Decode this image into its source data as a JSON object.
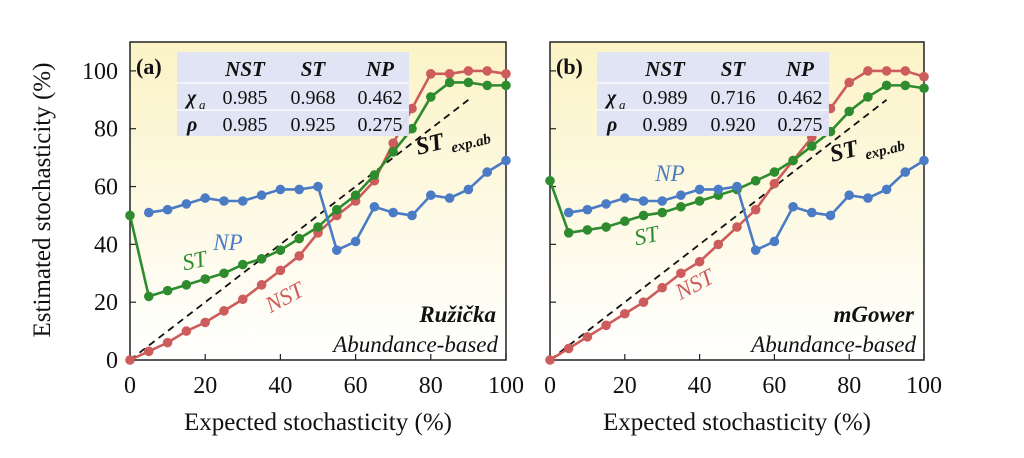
{
  "figure": {
    "ylabel": "Estimated stochasticity (%)"
  },
  "chart_data": [
    {
      "type": "line",
      "panel_label": "(a)",
      "xlabel": "Expected stochasticity (%)",
      "ylabel": "Estimated stochasticity (%)",
      "xlim": [
        0,
        100
      ],
      "ylim": [
        0,
        110
      ],
      "xticks": [
        "0",
        "20",
        "40",
        "60",
        "80",
        "100"
      ],
      "yticks": [
        "0",
        "20",
        "40",
        "60",
        "80",
        "100"
      ],
      "metric_name": "Ružička",
      "metric_type": "Abundance-based",
      "reference_label_main": "ST",
      "reference_label_sub": "exp.ab",
      "reference_line": {
        "x": [
          0,
          90
        ],
        "y": [
          0,
          90
        ],
        "style": "dashed",
        "color": "#111111"
      },
      "stats_table": {
        "header": [
          "NST",
          "ST",
          "NP"
        ],
        "rows": [
          {
            "label": "χ",
            "sub": "a",
            "values": [
              "0.985",
              "0.968",
              "0.462"
            ]
          },
          {
            "label": "ρ",
            "sub": "",
            "values": [
              "0.985",
              "0.925",
              "0.275"
            ]
          }
        ]
      },
      "series": [
        {
          "name": "NST",
          "color": "#cd5c5c",
          "x": [
            0,
            5,
            10,
            15,
            20,
            25,
            30,
            35,
            40,
            45,
            50,
            55,
            60,
            65,
            70,
            75,
            80,
            85,
            90,
            95,
            100
          ],
          "y": [
            0,
            3,
            6,
            10,
            13,
            17,
            21,
            26,
            31,
            36,
            44,
            50,
            55,
            62,
            75,
            87,
            99,
            99,
            100,
            100,
            99
          ]
        },
        {
          "name": "ST",
          "color": "#2e8b2e",
          "x": [
            0,
            5,
            10,
            15,
            20,
            25,
            30,
            35,
            40,
            45,
            50,
            55,
            60,
            65,
            70,
            75,
            80,
            85,
            90,
            95,
            100
          ],
          "y": [
            50,
            22,
            24,
            26,
            28,
            30,
            33,
            35,
            38,
            42,
            46,
            52,
            57,
            64,
            72,
            80,
            91,
            96,
            96,
            95,
            95
          ]
        },
        {
          "name": "NP",
          "color": "#4a7bc4",
          "x": [
            5,
            10,
            15,
            20,
            25,
            30,
            35,
            40,
            45,
            50,
            55,
            60,
            65,
            70,
            75,
            80,
            85,
            90,
            95,
            100
          ],
          "y": [
            51,
            52,
            54,
            56,
            55,
            55,
            57,
            59,
            59,
            60,
            38,
            41,
            53,
            51,
            50,
            57,
            56,
            59,
            65,
            69
          ]
        }
      ]
    },
    {
      "type": "line",
      "panel_label": "(b)",
      "xlabel": "Expected stochasticity (%)",
      "ylabel": "",
      "xlim": [
        0,
        100
      ],
      "ylim": [
        0,
        110
      ],
      "xticks": [
        "0",
        "20",
        "40",
        "60",
        "80",
        "100"
      ],
      "yticks": [],
      "metric_name": "mGower",
      "metric_type": "Abundance-based",
      "reference_label_main": "ST",
      "reference_label_sub": "exp.ab",
      "reference_line": {
        "x": [
          0,
          90
        ],
        "y": [
          0,
          90
        ],
        "style": "dashed",
        "color": "#111111"
      },
      "stats_table": {
        "header": [
          "NST",
          "ST",
          "NP"
        ],
        "rows": [
          {
            "label": "χ",
            "sub": "a",
            "values": [
              "0.989",
              "0.716",
              "0.462"
            ]
          },
          {
            "label": "ρ",
            "sub": "",
            "values": [
              "0.989",
              "0.920",
              "0.275"
            ]
          }
        ]
      },
      "series": [
        {
          "name": "NST",
          "color": "#cd5c5c",
          "x": [
            0,
            5,
            10,
            15,
            20,
            25,
            30,
            35,
            40,
            45,
            50,
            55,
            60,
            65,
            70,
            75,
            80,
            85,
            90,
            95,
            100
          ],
          "y": [
            0,
            4,
            8,
            12,
            16,
            20,
            25,
            30,
            34,
            40,
            46,
            52,
            61,
            69,
            77,
            87,
            96,
            100,
            100,
            100,
            98
          ]
        },
        {
          "name": "ST",
          "color": "#2e8b2e",
          "x": [
            0,
            5,
            10,
            15,
            20,
            25,
            30,
            35,
            40,
            45,
            50,
            55,
            60,
            65,
            70,
            75,
            80,
            85,
            90,
            95,
            100
          ],
          "y": [
            62,
            44,
            45,
            46,
            48,
            50,
            51,
            53,
            55,
            57,
            59,
            62,
            65,
            69,
            74,
            79,
            86,
            91,
            95,
            95,
            94
          ]
        },
        {
          "name": "NP",
          "color": "#4a7bc4",
          "x": [
            5,
            10,
            15,
            20,
            25,
            30,
            35,
            40,
            45,
            50,
            55,
            60,
            65,
            70,
            75,
            80,
            85,
            90,
            95,
            100
          ],
          "y": [
            51,
            52,
            54,
            56,
            55,
            55,
            57,
            59,
            59,
            60,
            38,
            41,
            53,
            51,
            50,
            57,
            56,
            59,
            65,
            69
          ]
        }
      ]
    }
  ]
}
